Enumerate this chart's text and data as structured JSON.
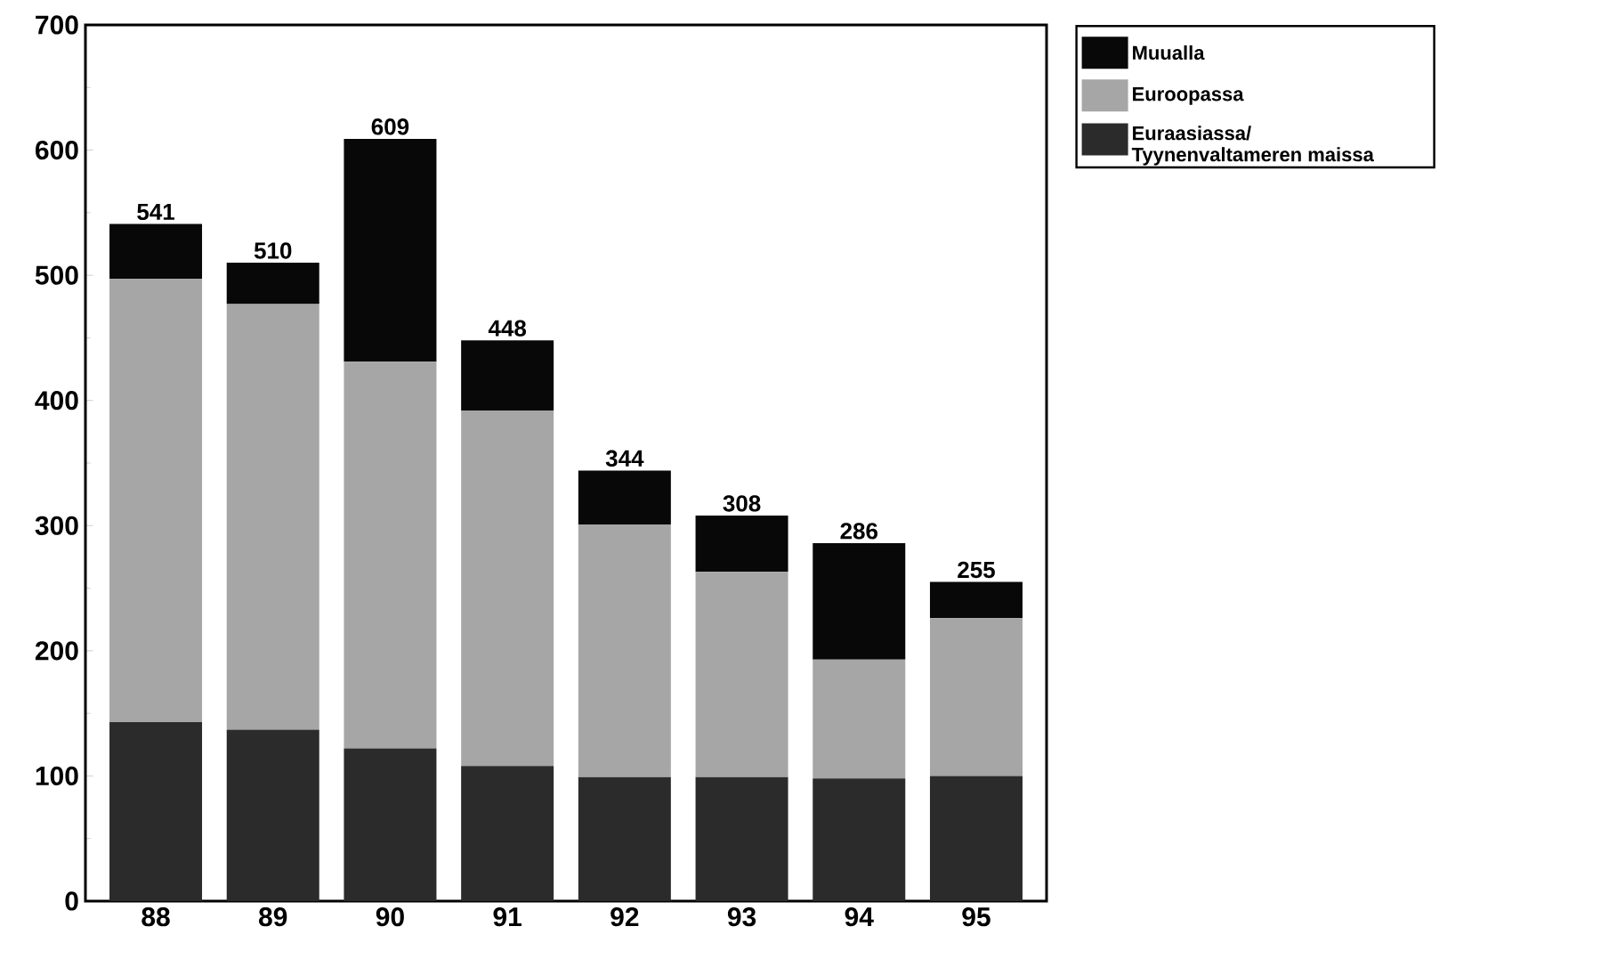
{
  "chart_data": {
    "type": "bar",
    "stacked": true,
    "categories": [
      "88",
      "89",
      "90",
      "91",
      "92",
      "93",
      "94",
      "95"
    ],
    "series": [
      {
        "name": "Euraasiassa/ Tyynenvaltameren maissa",
        "color": "#2b2b2b",
        "values": [
          143,
          137,
          122,
          108,
          99,
          99,
          98,
          100
        ]
      },
      {
        "name": "Euroopassa",
        "color": "#a6a6a6",
        "values": [
          354,
          340,
          309,
          284,
          202,
          164,
          95,
          126
        ]
      },
      {
        "name": "Muualla",
        "color": "#080808",
        "values": [
          44,
          33,
          178,
          56,
          43,
          45,
          93,
          29
        ]
      }
    ],
    "totals": [
      "541",
      "510",
      "609",
      "448",
      "344",
      "308",
      "286",
      "255"
    ],
    "ylim": [
      0,
      700
    ],
    "yticks": [
      0,
      100,
      200,
      300,
      400,
      500,
      600,
      700
    ],
    "legend": "top right",
    "grid": false
  }
}
